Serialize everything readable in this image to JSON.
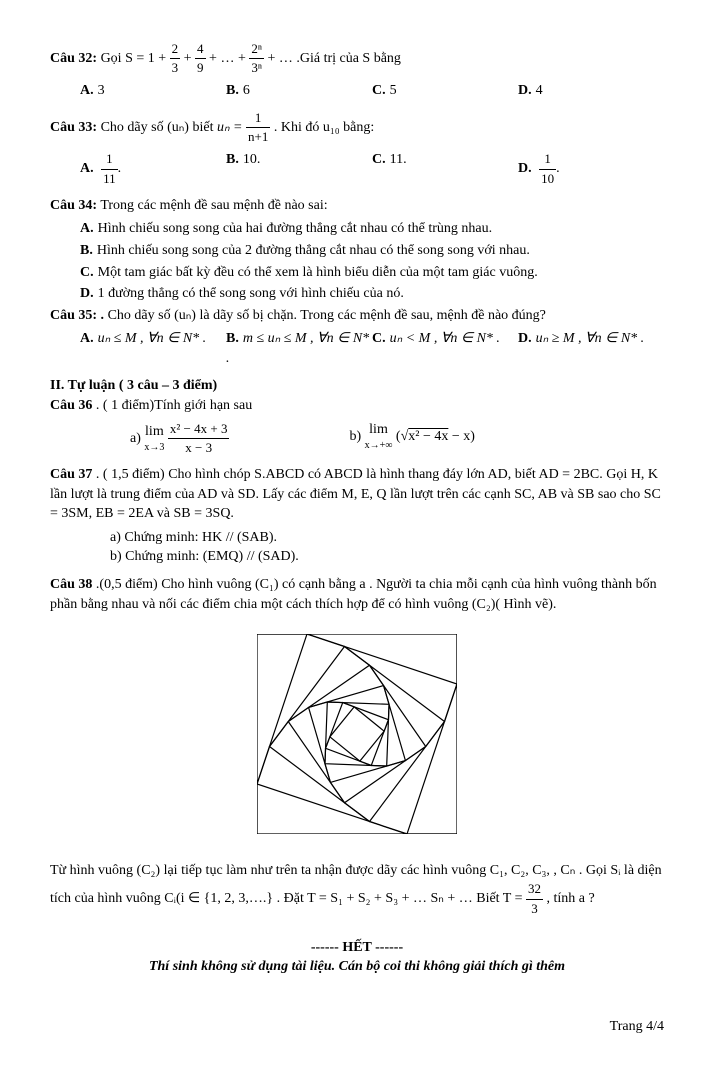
{
  "q32": {
    "label": "Câu 32:",
    "stem_a": "Gọi S = 1 + ",
    "frac1_num": "2",
    "frac1_den": "3",
    "plus1": " + ",
    "frac2_num": "4",
    "frac2_den": "9",
    "plus2": " + … + ",
    "frac3_num": "2ⁿ",
    "frac3_den": "3ⁿ",
    "tail": " + …  .Giá trị của S bằng",
    "A": "3",
    "B": "6",
    "C": "5",
    "D": "4"
  },
  "q33": {
    "label": "Câu 33:",
    "stem_a": "Cho dãy số (uₙ) biết ",
    "eq_lhs": "uₙ = ",
    "frac_num": "1",
    "frac_den": "n+1",
    "stem_b": ". Khi đó u₁₀ bằng:",
    "A_num": "1",
    "A_den": "11",
    "A_tail": ".",
    "B": "10.",
    "C": "11.",
    "D_num": "1",
    "D_den": "10",
    "D_tail": "."
  },
  "q34": {
    "label": "Câu 34:",
    "stem": "Trong các mệnh đề sau mệnh đề nào sai:",
    "A": "Hình chiếu song song của hai đường thẳng cắt nhau có thể trùng nhau.",
    "B": "Hình chiếu song song của 2 đường thẳng cắt nhau có thể song song với nhau.",
    "C": "Một tam giác bất kỳ đều có thể xem là hình biểu diễn của một tam giác vuông.",
    "D": "1 đường thẳng có thể song song với hình chiếu của nó."
  },
  "q35": {
    "label": "Câu 35: .",
    "stem": "Cho dãy số (uₙ) là dãy số bị chặn. Trong các mệnh đề sau, mệnh đề nào đúng?",
    "A": "uₙ ≤ M , ∀n ∈ N* .",
    "B": "m ≤ uₙ ≤ M , ∀n ∈ N* .",
    "C": "uₙ < M , ∀n ∈ N* .",
    "D": "uₙ ≥ M , ∀n ∈ N* ."
  },
  "section2": "II. Tự luận ( 3 câu – 3 điểm)",
  "q36": {
    "label": "Câu 36",
    "title": ". ( 1 điểm)Tính giới hạn sau",
    "a_label": "a)  ",
    "a_lim": "lim",
    "a_sub": "x→3",
    "a_num": "x² − 4x + 3",
    "a_den": "x − 3",
    "b_label": "b)  ",
    "b_lim": "lim",
    "b_sub": "x→+∞",
    "b_paren_l": "(",
    "b_sqrt": "x² − 4x",
    "b_tail": " − x",
    "b_paren_r": ")"
  },
  "q37": {
    "label": "Câu 37",
    "stem1": ". ( 1,5 điểm) Cho hình chóp S.ABCD có ABCD là hình thang đáy lớn AD, biết AD = 2BC. Gọi H, K lần lượt là trung điểm của AD và SD. Lấy các điểm M, E, Q lần lượt trên các cạnh SC, AB và SB sao cho SC = 3SM, EB = 2EA và SB = 3SQ.",
    "a": "a) Chứng minh: HK // (SAB).",
    "b": "b) Chứng minh: (EMQ) // (SAD)."
  },
  "q38": {
    "label": "Câu 38",
    "stem1": ".(0,5 điểm) Cho hình vuông (C₁) có cạnh bằng a . Người ta chia mỗi cạnh của hình vuông thành bốn phần bằng nhau và nối các điểm chia một cách thích hợp để có hình vuông (C₂)( Hình vẽ).",
    "stem2": "Từ hình vuông (C₂) lại tiếp tục làm như trên ta nhận được dãy các hình vuông C₁, C₂, C₃, , Cₙ . Gọi Sᵢ là diện tích của hình vuông Cᵢ(i ∈ {1, 2, 3,….} . Đặt T = S₁ + S₂ + S₃ + … Sₙ + … Biết T = ",
    "frac_num": "32",
    "frac_den": "3",
    "stem3": ", tính a ?"
  },
  "end": "------ HẾT ------",
  "note": "Thí sinh không sử dụng tài liệu. Cán bộ coi thi không giải thích gì thêm",
  "footer": "Trang 4/4",
  "diagram": {
    "outer_size": 200,
    "stroke": "#000000",
    "stroke_width": 1.2,
    "background": "#ffffff",
    "iterations": 7,
    "ratio": 0.25
  }
}
